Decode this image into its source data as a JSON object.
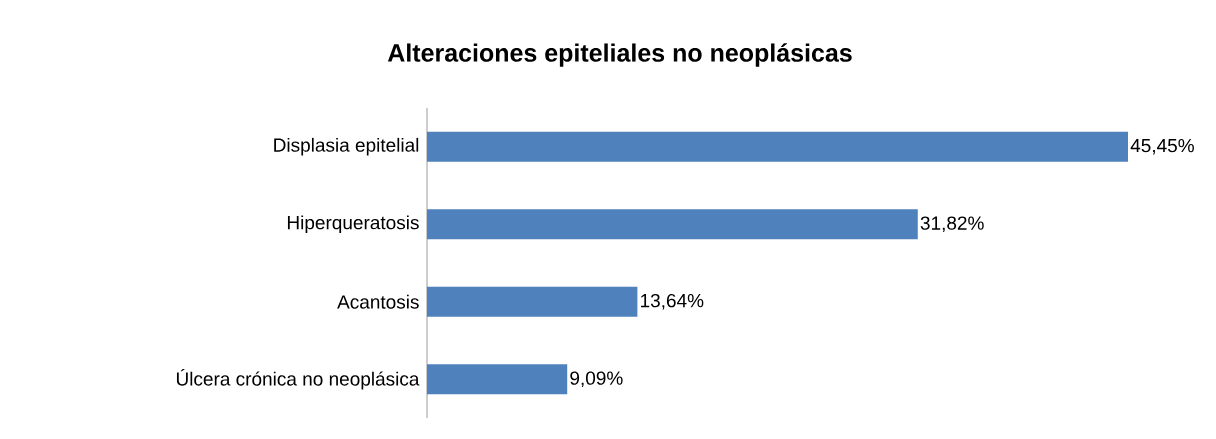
{
  "chart_data": {
    "type": "bar",
    "orientation": "horizontal",
    "title": "Alteraciones epiteliales no neoplásicas",
    "categories": [
      "Displasia epitelial",
      "Hiperqueratosis",
      "Acantosis",
      "Úlcera crónica no neoplásica"
    ],
    "values": [
      45.45,
      31.82,
      13.64,
      9.09
    ],
    "value_labels": [
      "45,45%",
      "31,82%",
      "13,64%",
      "9,09%"
    ],
    "color": "#4f81bd",
    "grid": false
  }
}
